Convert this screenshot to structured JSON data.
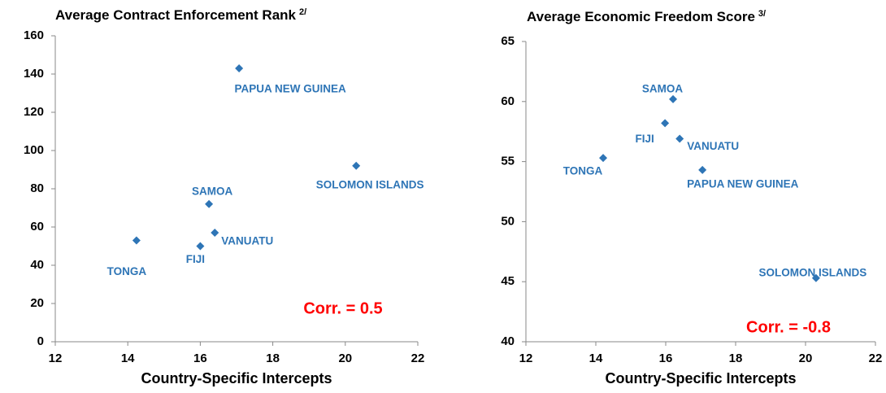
{
  "chart_data": [
    {
      "type": "scatter",
      "title": "Average Contract Enforcement Rank",
      "title_note": "2/",
      "xlabel": "Country-Specific Intercepts",
      "annotation": "Corr. = 0.5",
      "color": "#2e75b6",
      "labels": [
        "PAPUA NEW GUINEA",
        "SOLOMON ISLANDS",
        "SAMOA",
        "VANUATU",
        "FIJI",
        "TONGA"
      ],
      "x": [
        17.07,
        20.3,
        16.24,
        16.4,
        16.0,
        14.24
      ],
      "y": [
        143,
        92,
        72,
        57,
        50,
        53
      ],
      "xlim": [
        12,
        22
      ],
      "xticks": [
        12,
        14,
        16,
        18,
        20,
        22
      ],
      "ylim": [
        0,
        160
      ],
      "yticks": [
        0,
        20,
        40,
        60,
        80,
        100,
        120,
        140,
        160
      ]
    },
    {
      "type": "scatter",
      "title": "Average Economic Freedom Score",
      "title_note": "3/",
      "xlabel": "Country-Specific Intercepts",
      "annotation": "Corr. = -0.8",
      "color": "#2e75b6",
      "labels": [
        "SAMOA",
        "FIJI",
        "VANUATU",
        "TONGA",
        "PAPUA NEW GUINEA",
        "SOLOMON ISLANDS"
      ],
      "x": [
        16.21,
        15.98,
        16.4,
        14.21,
        17.05,
        20.3
      ],
      "y": [
        60.2,
        58.2,
        56.9,
        55.3,
        54.3,
        45.3
      ],
      "xlim": [
        12,
        22
      ],
      "xticks": [
        12,
        14,
        16,
        18,
        20,
        22
      ],
      "ylim": [
        40,
        65
      ],
      "yticks": [
        40,
        45,
        50,
        55,
        60,
        65
      ]
    }
  ]
}
